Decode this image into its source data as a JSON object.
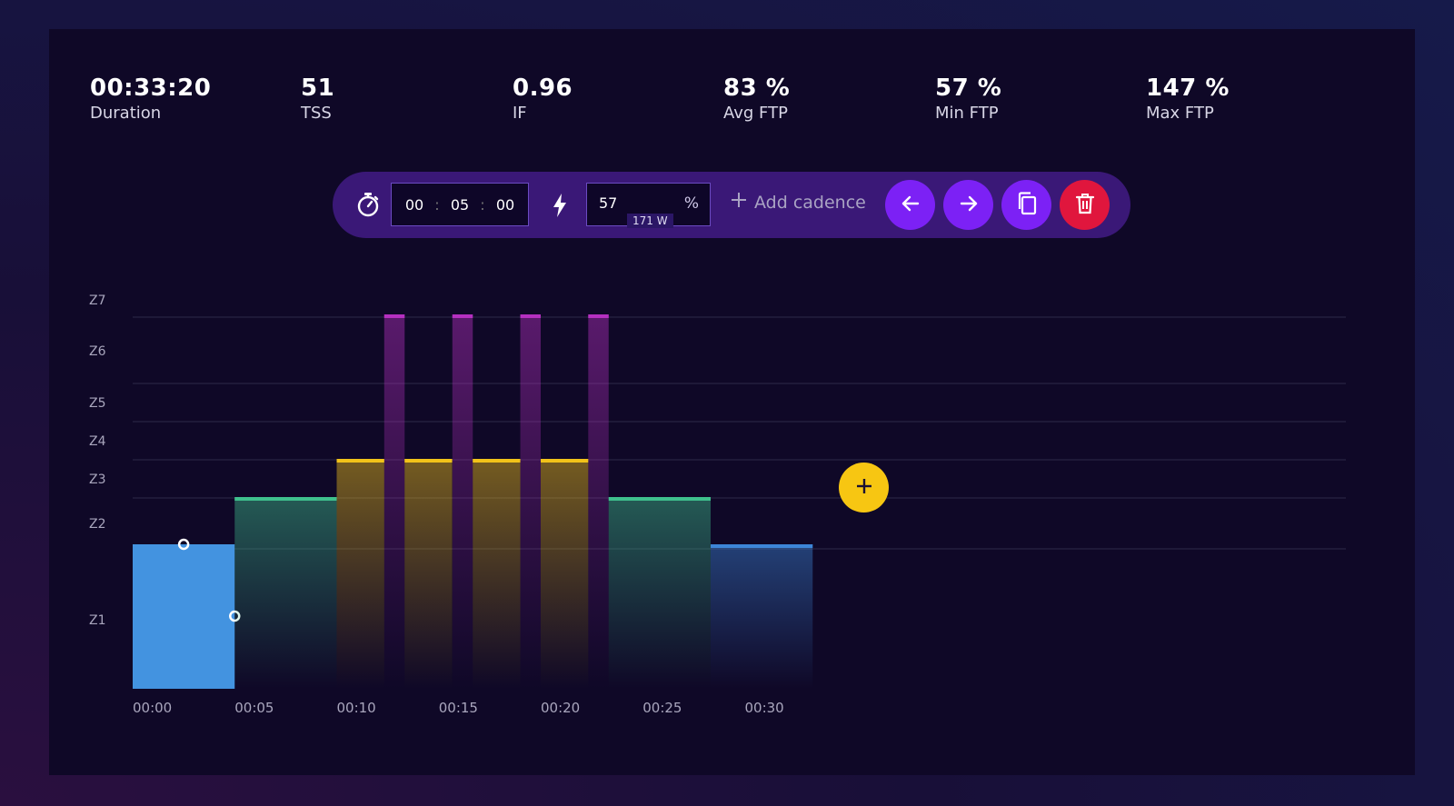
{
  "stats": {
    "duration": {
      "value": "00:33:20",
      "label": "Duration"
    },
    "tss": {
      "value": "51",
      "label": "TSS"
    },
    "if": {
      "value": "0.96",
      "label": "IF"
    },
    "avg_ftp": {
      "value": "83 %",
      "label": "Avg FTP"
    },
    "min_ftp": {
      "value": "57 %",
      "label": "Min FTP"
    },
    "max_ftp": {
      "value": "147 %",
      "label": "Max FTP"
    }
  },
  "toolbar": {
    "timer_icon": "stopwatch-icon",
    "time": {
      "hours": "00",
      "minutes": "05",
      "seconds": "00",
      "separator": ":"
    },
    "power_icon": "lightning-icon",
    "power_value": "57",
    "power_unit": "%",
    "power_watts": "171 W",
    "add_cadence_label": "Add cadence",
    "buttons": {
      "prev_icon": "arrow-left-icon",
      "next_icon": "arrow-right-icon",
      "copy_icon": "copy-icon",
      "delete_icon": "trash-icon"
    },
    "colors": {
      "accent": "#7c21f5",
      "delete": "#e0163d",
      "toolbar": "#3a1877"
    }
  },
  "chart": {
    "zones": [
      "Z7",
      "Z6",
      "Z5",
      "Z4",
      "Z3",
      "Z2",
      "Z1"
    ],
    "time_ticks": [
      "00:00",
      "00:05",
      "00:10",
      "00:15",
      "00:20",
      "00:25",
      "00:30"
    ],
    "add_button_icon": "plus-icon"
  },
  "chart_data": {
    "type": "bar",
    "x_unit": "minutes",
    "xlim": [
      0,
      60
    ],
    "zone_boundaries_ftp_pct": [
      55,
      75,
      90,
      105,
      120,
      150
    ],
    "segments": [
      {
        "start": 0,
        "duration": 5,
        "ftp_pct": 57,
        "zone": "Z2",
        "selected": true
      },
      {
        "start": 5,
        "duration": 5,
        "ftp_pct": 75,
        "zone": "Z2"
      },
      {
        "start": 10,
        "duration": 2.33,
        "ftp_pct": 90,
        "zone": "Z4"
      },
      {
        "start": 12.33,
        "duration": 1,
        "ftp_pct": 147,
        "zone": "Z6"
      },
      {
        "start": 13.33,
        "duration": 2.33,
        "ftp_pct": 90,
        "zone": "Z4"
      },
      {
        "start": 15.67,
        "duration": 1,
        "ftp_pct": 147,
        "zone": "Z6"
      },
      {
        "start": 16.67,
        "duration": 2.33,
        "ftp_pct": 90,
        "zone": "Z4"
      },
      {
        "start": 19,
        "duration": 1,
        "ftp_pct": 147,
        "zone": "Z6"
      },
      {
        "start": 20,
        "duration": 2.33,
        "ftp_pct": 90,
        "zone": "Z4"
      },
      {
        "start": 22.33,
        "duration": 1,
        "ftp_pct": 147,
        "zone": "Z6"
      },
      {
        "start": 23.33,
        "duration": 5,
        "ftp_pct": 75,
        "zone": "Z2"
      },
      {
        "start": 28.33,
        "duration": 5,
        "ftp_pct": 57,
        "zone": "Z2"
      }
    ],
    "zone_colors": {
      "selected": "#4393e0",
      "Z2_high": "#3fc08d",
      "Z4": "#f2c319",
      "Z6": "#b530c0",
      "Z2_low": "#3d86d8"
    }
  }
}
